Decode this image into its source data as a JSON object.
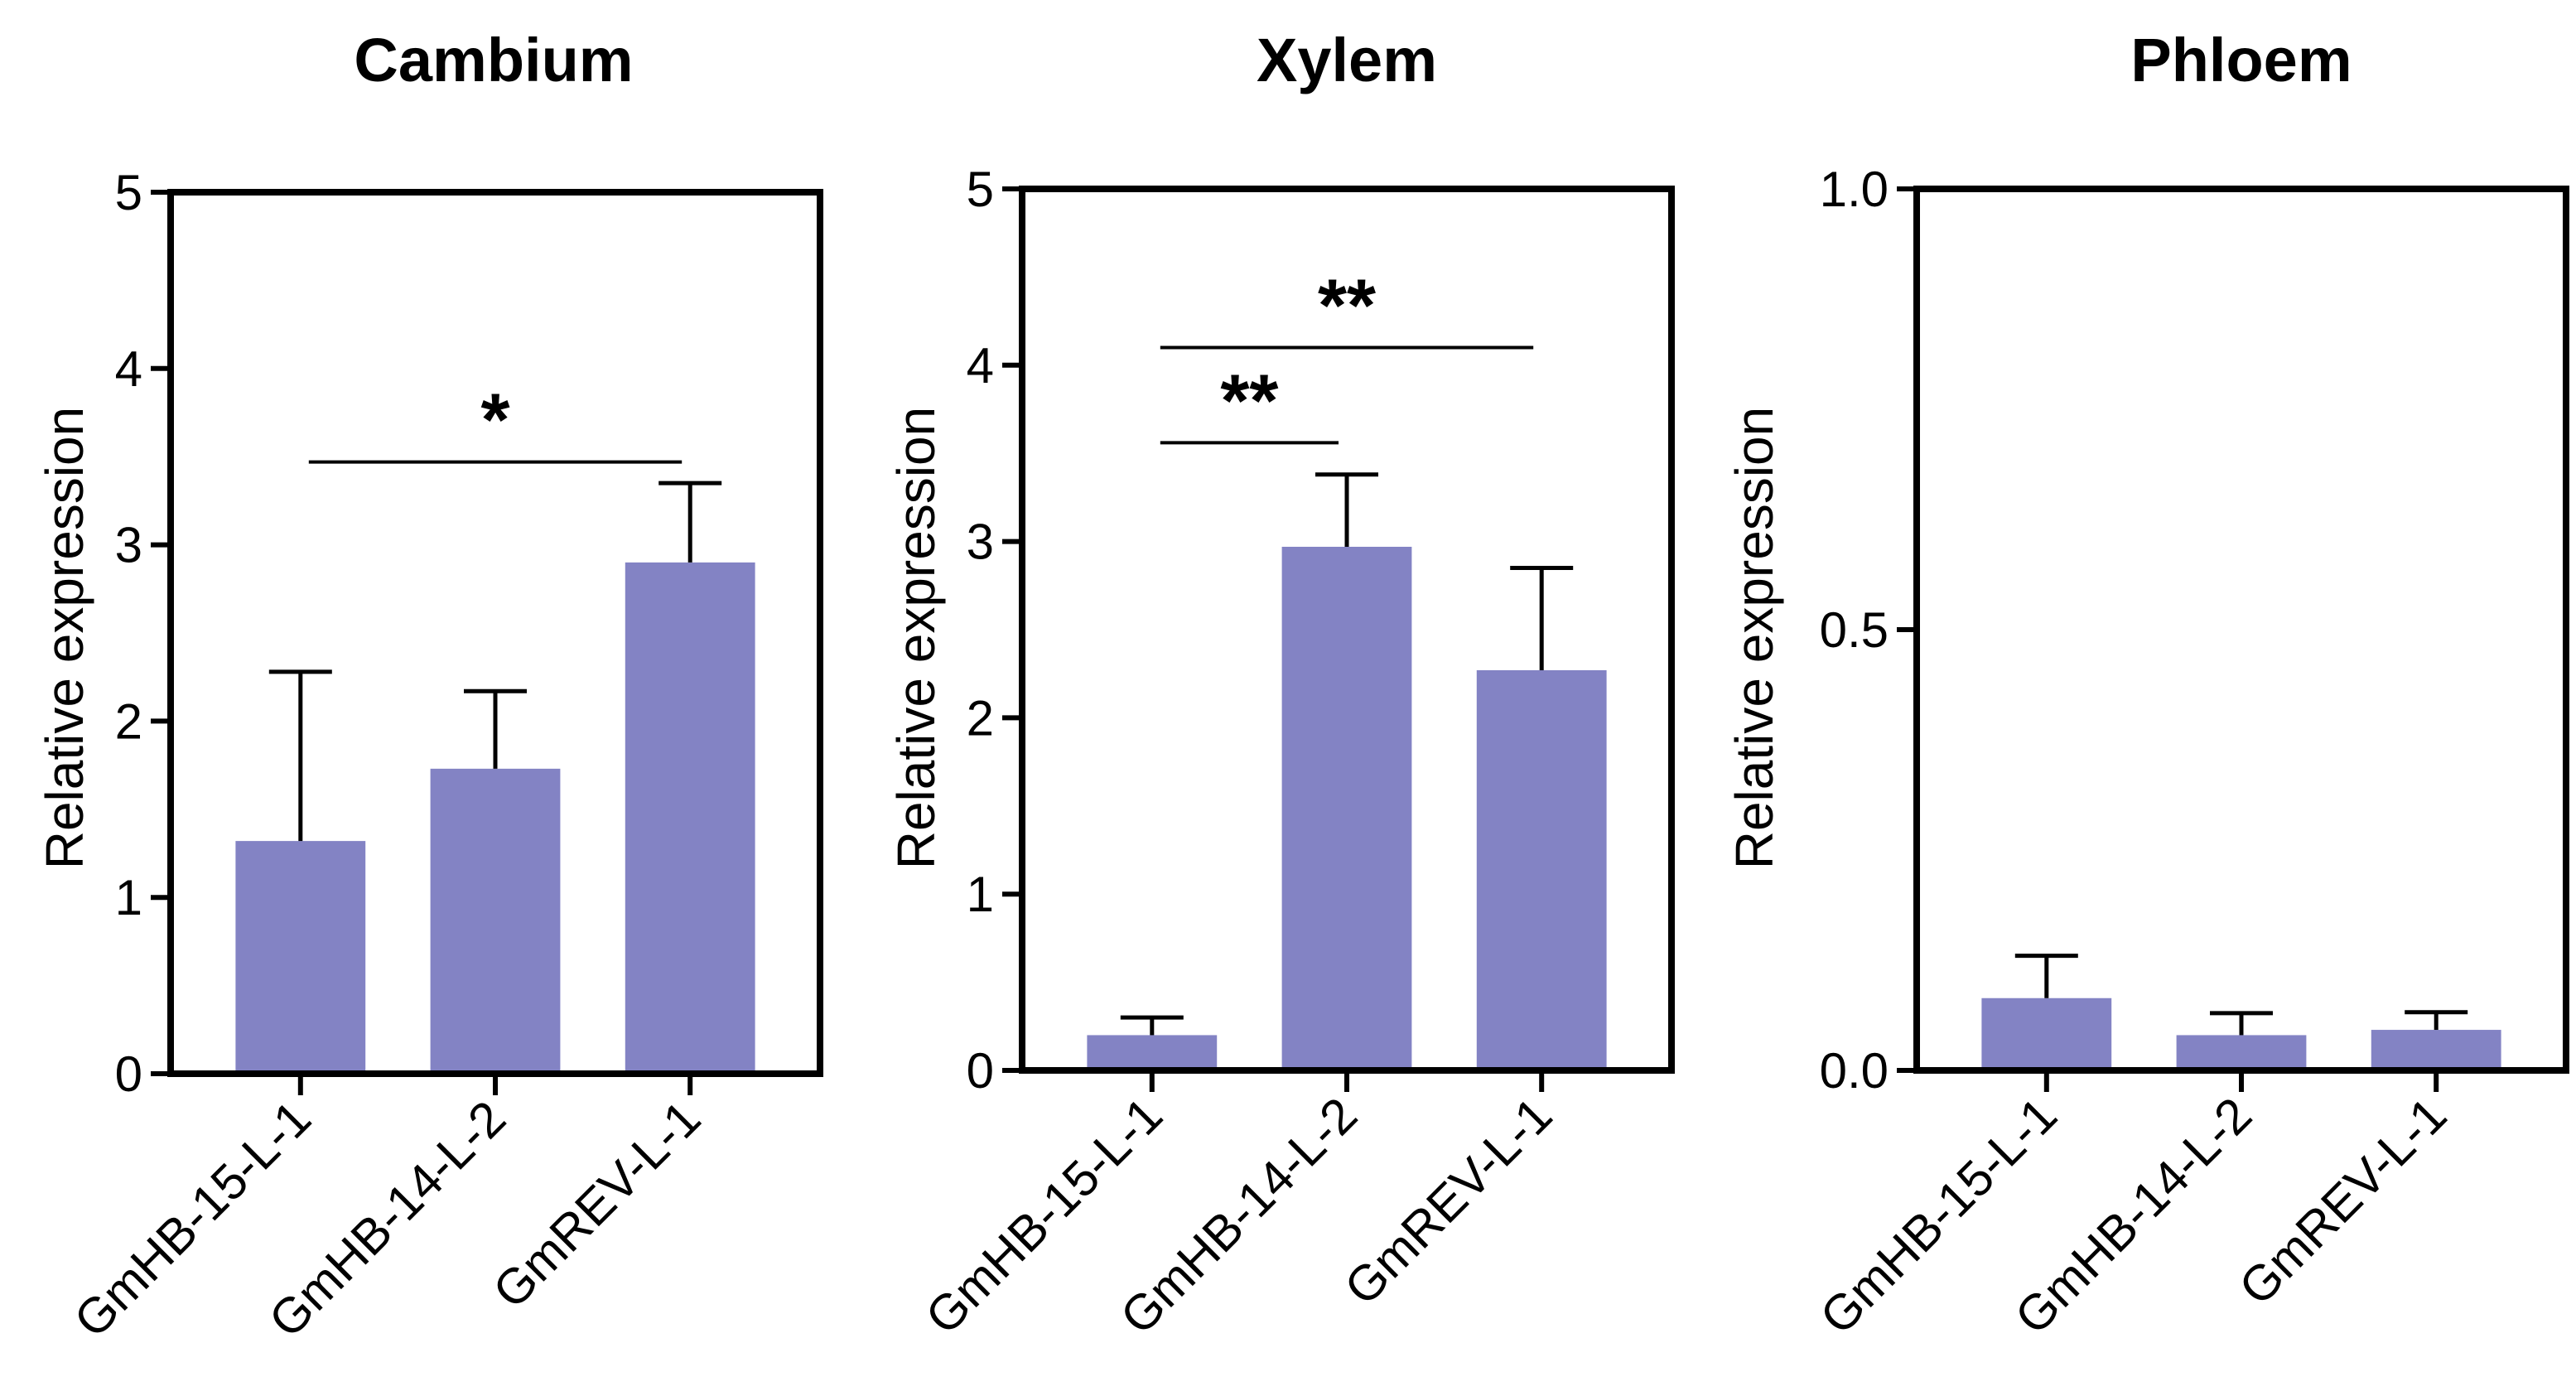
{
  "chart_data": [
    {
      "type": "bar",
      "title": "Cambium",
      "xlabel": "",
      "ylabel": "Relative  expression",
      "ylim": [
        0,
        5
      ],
      "yticks": [
        "0",
        "1",
        "2",
        "3",
        "4",
        "5"
      ],
      "categories": [
        "GmHB-15-L-1",
        "GmHB-14-L-2",
        "GmREV-L-1"
      ],
      "values": [
        1.32,
        1.73,
        2.9
      ],
      "errors": [
        0.96,
        0.44,
        0.45
      ],
      "significance": [
        {
          "from": 0,
          "to": 2,
          "label": "*",
          "y": 3.47
        }
      ],
      "bar_color": "#8383c4"
    },
    {
      "type": "bar",
      "title": "Xylem",
      "xlabel": "",
      "ylabel": "Relative  expression",
      "ylim": [
        0,
        5
      ],
      "yticks": [
        "0",
        "1",
        "2",
        "3",
        "4",
        "5"
      ],
      "categories": [
        "GmHB-15-L-1",
        "GmHB-14-L-2",
        "GmREV-L-1"
      ],
      "values": [
        0.2,
        2.97,
        2.27
      ],
      "errors": [
        0.1,
        0.41,
        0.58
      ],
      "significance": [
        {
          "from": 0,
          "to": 1,
          "label": "**",
          "y": 3.56
        },
        {
          "from": 0,
          "to": 2,
          "label": "**",
          "y": 4.1
        }
      ],
      "bar_color": "#8383c4"
    },
    {
      "type": "bar",
      "title": "Phloem",
      "xlabel": "",
      "ylabel": "Relative  expression",
      "ylim": [
        0,
        1
      ],
      "yticks": [
        "0.0",
        "0.5",
        "1.0"
      ],
      "categories": [
        "GmHB-15-L-1",
        "GmHB-14-L-2",
        "GmREV-L-1"
      ],
      "values": [
        0.082,
        0.04,
        0.046
      ],
      "errors": [
        0.048,
        0.025,
        0.02
      ],
      "significance": [],
      "bar_color": "#8383c4"
    }
  ]
}
